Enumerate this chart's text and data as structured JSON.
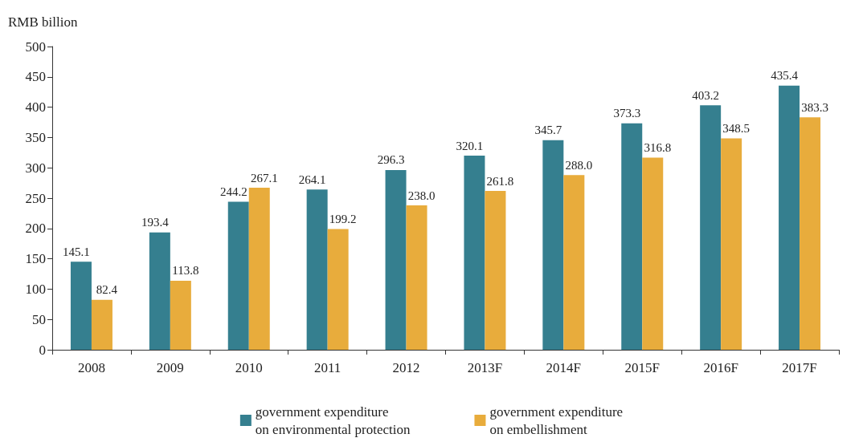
{
  "chart_data": {
    "type": "bar",
    "ylabel": "RMB billion",
    "categories": [
      "2008",
      "2009",
      "2010",
      "2011",
      "2012",
      "2013F",
      "2014F",
      "2015F",
      "2016F",
      "2017F"
    ],
    "series": [
      {
        "name": "government expenditure\non environmental protection",
        "color": "#357f8f",
        "values": [
          145.1,
          193.4,
          244.2,
          264.1,
          296.3,
          320.1,
          345.7,
          373.3,
          403.2,
          435.4
        ],
        "value_labels": [
          "145.1",
          "193.4",
          "244.2",
          "264.1",
          "296.3",
          "320.1",
          "345.7",
          "373.3",
          "403.2",
          "435.4"
        ]
      },
      {
        "name": "government expenditure\non embellishment",
        "color": "#e8ac3c",
        "values": [
          82.4,
          113.8,
          267.1,
          199.2,
          238.0,
          261.8,
          288.0,
          316.8,
          348.5,
          383.3
        ],
        "value_labels": [
          "82.4",
          "113.8",
          "267.1",
          "199.2",
          "238.0",
          "261.8",
          "288.0",
          "316.8",
          "348.5",
          "383.3"
        ]
      }
    ],
    "ylim": [
      0,
      500
    ],
    "yticks": [
      0,
      50,
      100,
      150,
      200,
      250,
      300,
      350,
      400,
      450,
      500
    ],
    "grid": false,
    "legend": "bottom"
  }
}
